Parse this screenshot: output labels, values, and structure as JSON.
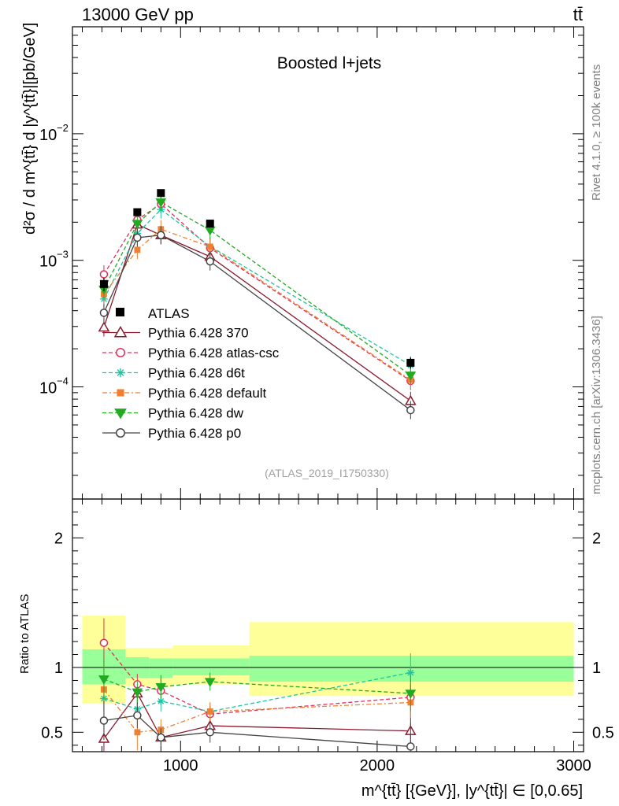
{
  "header": {
    "left": "13000 GeV pp",
    "right": "tt̄"
  },
  "side_labels": {
    "rivet": "Rivet 4.1.0, ≥ 100k events",
    "mcplots": "mcplots.cern.ch [arXiv:1306.3436]"
  },
  "analysis_id": "(ATLAS_2019_I1750330)",
  "chart_data": {
    "type": "scatter",
    "title": "Boosted l+jets",
    "xlabel": "m^{tt̄} [{GeV}], |y^{tt̄}| ∈ [0,0.65]",
    "ylabel": "d²σ / d m^{tt̄} d |y^{tt̄}|[pb/GeV]",
    "ratio_ylabel": "Ratio to ATLAS",
    "xlim": [
      450,
      3050
    ],
    "ylim": [
      1.3e-05,
      0.07
    ],
    "ratio_ylim": [
      0.35,
      2.3
    ],
    "x_ticks": [
      1000,
      2000,
      3000
    ],
    "y_ticks": [
      {
        "value": 0.0001,
        "base": "10",
        "exp": "−4"
      },
      {
        "value": 0.001,
        "base": "10",
        "exp": "−3"
      },
      {
        "value": 0.01,
        "base": "10",
        "exp": "−2"
      }
    ],
    "ratio_ticks": [
      {
        "value": 0.5,
        "label": "0.5"
      },
      {
        "value": 1,
        "label": "1"
      },
      {
        "value": 2,
        "label": "2"
      }
    ],
    "x": [
      610,
      780,
      900,
      1150,
      2170
    ],
    "bins": [
      [
        500,
        720
      ],
      [
        720,
        840
      ],
      [
        840,
        960
      ],
      [
        960,
        1350
      ],
      [
        1350,
        3000
      ]
    ],
    "band_inner": [
      [
        0.87,
        1.14
      ],
      [
        0.92,
        1.08
      ],
      [
        0.92,
        1.07
      ],
      [
        0.94,
        1.07
      ],
      [
        0.89,
        1.09
      ]
    ],
    "band_outer": [
      [
        0.72,
        1.4
      ],
      [
        0.86,
        1.15
      ],
      [
        0.85,
        1.15
      ],
      [
        0.87,
        1.17
      ],
      [
        0.78,
        1.35
      ]
    ],
    "data": {
      "name": "ATLAS",
      "values": [
        0.00065,
        0.0024,
        0.0034,
        0.00195,
        0.000155
      ],
      "errors_rel": [
        0.12,
        0.06,
        0.06,
        0.07,
        0.1
      ]
    },
    "series": [
      {
        "name": "Pythia 6.428 370",
        "color": "#8b1a2e",
        "dash": "",
        "marker": "open-triangle",
        "values": [
          0.000295,
          0.00192,
          0.00158,
          0.00107,
          7.75e-05
        ],
        "ratio": [
          0.45,
          0.8,
          0.46,
          0.55,
          0.51
        ],
        "ratio_err": [
          0.12,
          0.09,
          0.06,
          0.08,
          0.15
        ]
      },
      {
        "name": "Pythia 6.428 atlas-csc",
        "color": "#e0305a",
        "dash": "5,3",
        "marker": "open-circle",
        "values": [
          0.000775,
          0.00209,
          0.00279,
          0.00125,
          0.0001115
        ],
        "ratio": [
          1.19,
          0.87,
          0.82,
          0.64,
          0.77
        ],
        "ratio_err": [
          0.19,
          0.08,
          0.1,
          0.06,
          0.1
        ]
      },
      {
        "name": "Pythia 6.428 d6t",
        "color": "#20c4a0",
        "dash": "5,3",
        "marker": "star",
        "values": [
          0.000495,
          0.00163,
          0.00252,
          0.00129,
          0.000148
        ],
        "ratio": [
          0.76,
          0.68,
          0.74,
          0.66,
          0.96
        ],
        "ratio_err": [
          0.15,
          0.08,
          0.08,
          0.07,
          0.15
        ]
      },
      {
        "name": "Pythia 6.428 default",
        "color": "#f08030",
        "dash": "6,3,2,3",
        "marker": "filled-square",
        "values": [
          0.00054,
          0.00121,
          0.00176,
          0.00128,
          0.0001135
        ],
        "ratio": [
          0.83,
          0.5,
          0.52,
          0.66,
          0.73
        ],
        "ratio_err": [
          0.18,
          0.14,
          0.08,
          0.07,
          0.12
        ]
      },
      {
        "name": "Pythia 6.428 dw",
        "color": "#22aa22",
        "dash": "5,3",
        "marker": "filled-triangle-down",
        "values": [
          0.00059,
          0.00195,
          0.00288,
          0.00173,
          0.0001235
        ],
        "ratio": [
          0.91,
          0.81,
          0.85,
          0.89,
          0.8
        ],
        "ratio_err": [
          0.15,
          0.08,
          0.09,
          0.07,
          0.14
        ]
      },
      {
        "name": "Pythia 6.428 p0",
        "color": "#444444",
        "dash": "",
        "marker": "open-circle",
        "values": [
          0.000385,
          0.00151,
          0.00158,
          0.00098,
          6.55e-05
        ],
        "ratio": [
          0.59,
          0.63,
          0.46,
          0.5,
          0.39
        ],
        "ratio_err": [
          0.15,
          0.1,
          0.07,
          0.08,
          0.18
        ]
      }
    ]
  }
}
